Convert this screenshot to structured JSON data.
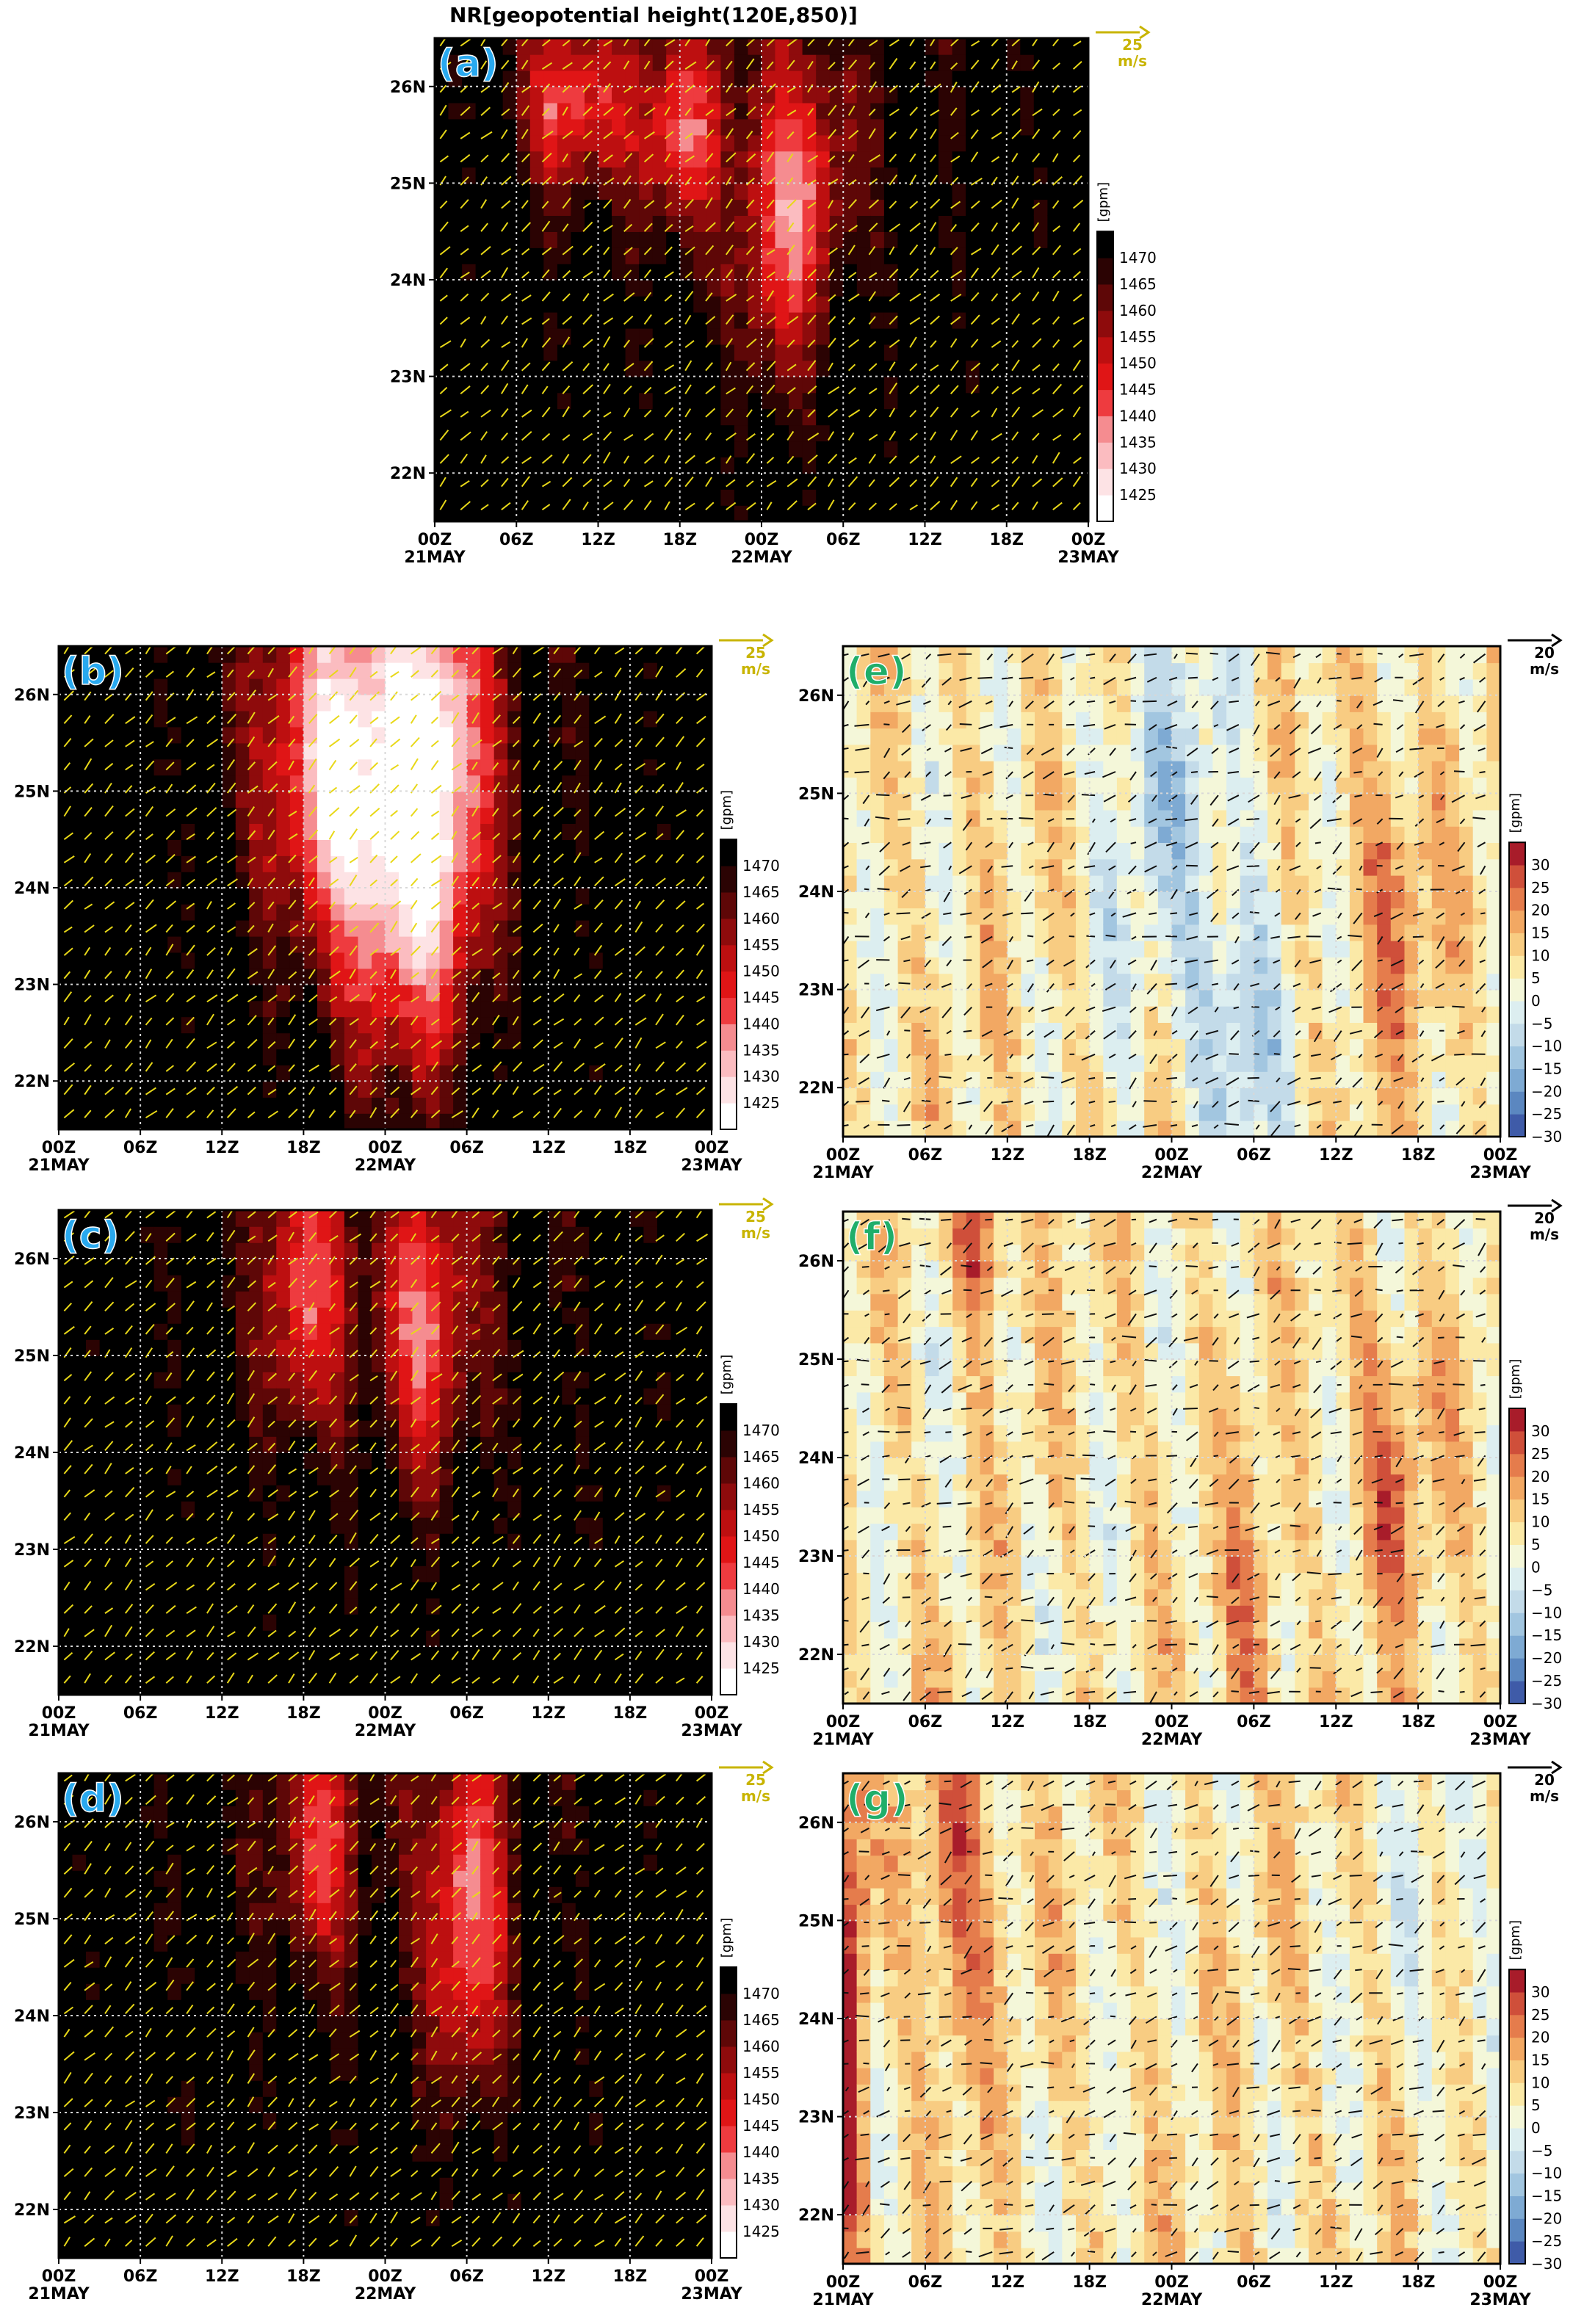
{
  "figure_title": "NR[geopotential height(120E,850)]",
  "chart_data": [
    {
      "id": "a",
      "panel_label": "(a)",
      "type": "heatmap",
      "style": "height",
      "title": "NR[geopotential height(120E,850)]",
      "x_ticks": [
        "00Z",
        "06Z",
        "12Z",
        "18Z",
        "00Z",
        "06Z",
        "12Z",
        "18Z",
        "00Z"
      ],
      "x_ticks_2": [
        "21MAY",
        "",
        "",
        "",
        "22MAY",
        "",
        "",
        "",
        "23MAY"
      ],
      "y_ticks": [
        "22N",
        "23N",
        "24N",
        "25N",
        "26N"
      ],
      "y_values": [
        22,
        23,
        24,
        25,
        26
      ],
      "ylim": [
        21.5,
        26.5
      ],
      "xlim": [
        0,
        48
      ],
      "grid": true,
      "vector_ref": {
        "value": 25,
        "unit": "m/s"
      },
      "colorbar": {
        "unit": "[gpm]",
        "levels": [
          1425,
          1430,
          1435,
          1440,
          1445,
          1450,
          1455,
          1460,
          1465,
          1470
        ],
        "colors": [
          "#ffffff",
          "#fde3e5",
          "#fbbcc0",
          "#f58c90",
          "#ee3b3f",
          "#e01516",
          "#bd0f10",
          "#8e0b0c",
          "#5e0707",
          "#2b0303",
          "#000000"
        ]
      },
      "blobs": [
        [
          10,
          25.8,
          4,
          0.9,
          32
        ],
        [
          18,
          25.5,
          3,
          1.0,
          30
        ],
        [
          25,
          24.3,
          3,
          1.8,
          25
        ],
        [
          28,
          25,
          3,
          1.2,
          20
        ]
      ]
    },
    {
      "id": "b",
      "panel_label": "(b)",
      "type": "heatmap",
      "style": "height",
      "x_ticks": [
        "00Z",
        "06Z",
        "12Z",
        "18Z",
        "00Z",
        "06Z",
        "12Z",
        "18Z",
        "00Z"
      ],
      "x_ticks_2": [
        "21MAY",
        "",
        "",
        "",
        "22MAY",
        "",
        "",
        "",
        "23MAY"
      ],
      "y_ticks": [
        "22N",
        "23N",
        "24N",
        "25N",
        "26N"
      ],
      "y_values": [
        22,
        23,
        24,
        25,
        26
      ],
      "ylim": [
        21.5,
        26.5
      ],
      "xlim": [
        0,
        48
      ],
      "grid": true,
      "vector_ref": {
        "value": 25,
        "unit": "m/s"
      },
      "colorbar": {
        "unit": "[gpm]",
        "levels": [
          1425,
          1430,
          1435,
          1440,
          1445,
          1450,
          1455,
          1460,
          1465,
          1470
        ],
        "colors": [
          "#ffffff",
          "#fde3e5",
          "#fbbcc0",
          "#f58c90",
          "#ee3b3f",
          "#e01516",
          "#bd0f10",
          "#8e0b0c",
          "#5e0707",
          "#2b0303",
          "#000000"
        ]
      },
      "blobs": [
        [
          20,
          25.3,
          5,
          2.0,
          40
        ],
        [
          28,
          25,
          4,
          2.5,
          45
        ],
        [
          24,
          24,
          4,
          2.5,
          22
        ]
      ]
    },
    {
      "id": "c",
      "panel_label": "(c)",
      "type": "heatmap",
      "style": "height",
      "x_ticks": [
        "00Z",
        "06Z",
        "12Z",
        "18Z",
        "00Z",
        "06Z",
        "12Z",
        "18Z",
        "00Z"
      ],
      "x_ticks_2": [
        "21MAY",
        "",
        "",
        "",
        "22MAY",
        "",
        "",
        "",
        "23MAY"
      ],
      "y_ticks": [
        "22N",
        "23N",
        "24N",
        "25N",
        "26N"
      ],
      "y_values": [
        22,
        23,
        24,
        25,
        26
      ],
      "ylim": [
        21.5,
        26.5
      ],
      "xlim": [
        0,
        48
      ],
      "grid": true,
      "vector_ref": {
        "value": 25,
        "unit": "m/s"
      },
      "colorbar": {
        "unit": "[gpm]",
        "levels": [
          1425,
          1430,
          1435,
          1440,
          1445,
          1450,
          1455,
          1460,
          1465,
          1470
        ],
        "colors": [
          "#ffffff",
          "#fde3e5",
          "#fbbcc0",
          "#f58c90",
          "#ee3b3f",
          "#e01516",
          "#bd0f10",
          "#8e0b0c",
          "#5e0707",
          "#2b0303",
          "#000000"
        ]
      },
      "blobs": [
        [
          18,
          25.6,
          3,
          1.4,
          30
        ],
        [
          27,
          25.3,
          3.5,
          1.6,
          30
        ]
      ]
    },
    {
      "id": "d",
      "panel_label": "(d)",
      "type": "heatmap",
      "style": "height",
      "x_ticks": [
        "00Z",
        "06Z",
        "12Z",
        "18Z",
        "00Z",
        "06Z",
        "12Z",
        "18Z",
        "00Z"
      ],
      "x_ticks_2": [
        "21MAY",
        "",
        "",
        "",
        "22MAY",
        "",
        "",
        "",
        "23MAY"
      ],
      "y_ticks": [
        "22N",
        "23N",
        "24N",
        "25N",
        "26N"
      ],
      "y_values": [
        22,
        23,
        24,
        25,
        26
      ],
      "ylim": [
        21.5,
        26.5
      ],
      "xlim": [
        0,
        48
      ],
      "grid": true,
      "vector_ref": {
        "value": 25,
        "unit": "m/s"
      },
      "colorbar": {
        "unit": "[gpm]",
        "levels": [
          1425,
          1430,
          1435,
          1440,
          1445,
          1450,
          1455,
          1460,
          1465,
          1470
        ],
        "colors": [
          "#ffffff",
          "#fde3e5",
          "#fbbcc0",
          "#f58c90",
          "#ee3b3f",
          "#e01516",
          "#bd0f10",
          "#8e0b0c",
          "#5e0707",
          "#2b0303",
          "#000000"
        ]
      },
      "blobs": [
        [
          19,
          25.7,
          3,
          1.2,
          26
        ],
        [
          30,
          25,
          3,
          1.8,
          35
        ]
      ]
    },
    {
      "id": "e",
      "panel_label": "(e)",
      "type": "heatmap",
      "style": "diff",
      "x_ticks": [
        "00Z",
        "06Z",
        "12Z",
        "18Z",
        "00Z",
        "06Z",
        "12Z",
        "18Z",
        "00Z"
      ],
      "x_ticks_2": [
        "21MAY",
        "",
        "",
        "",
        "22MAY",
        "",
        "",
        "",
        "23MAY"
      ],
      "y_ticks": [
        "22N",
        "23N",
        "24N",
        "25N",
        "26N"
      ],
      "y_values": [
        22,
        23,
        24,
        25,
        26
      ],
      "ylim": [
        21.5,
        26.5
      ],
      "xlim": [
        0,
        48
      ],
      "grid": true,
      "vector_ref": {
        "value": 20,
        "unit": "m/s"
      },
      "colorbar": {
        "unit": "[gpm]",
        "levels": [
          -30,
          -25,
          -20,
          -15,
          -10,
          -5,
          0,
          5,
          10,
          15,
          20,
          25,
          30
        ],
        "labels": [
          "30",
          "25",
          "20",
          "15",
          "10",
          "5",
          "0",
          "−5",
          "−10",
          "−15",
          "−20",
          "−25",
          "−30"
        ],
        "colors": [
          "#3f5ba8",
          "#5b87c0",
          "#7eaad3",
          "#a2c6e0",
          "#c3dbe9",
          "#dceef0",
          "#f4f7d9",
          "#fbe9a7",
          "#f8cc82",
          "#f2a863",
          "#e57c4c",
          "#cf4f3a",
          "#a81c2a"
        ]
      },
      "blobs": [
        [
          24,
          24.8,
          5,
          2.5,
          -14
        ],
        [
          29,
          22.5,
          3,
          1.5,
          -18
        ],
        [
          40,
          24,
          3,
          1.6,
          14
        ]
      ]
    },
    {
      "id": "f",
      "panel_label": "(f)",
      "type": "heatmap",
      "style": "diff",
      "x_ticks": [
        "00Z",
        "06Z",
        "12Z",
        "18Z",
        "00Z",
        "06Z",
        "12Z",
        "18Z",
        "00Z"
      ],
      "x_ticks_2": [
        "21MAY",
        "",
        "",
        "",
        "22MAY",
        "",
        "",
        "",
        "23MAY"
      ],
      "y_ticks": [
        "22N",
        "23N",
        "24N",
        "25N",
        "26N"
      ],
      "y_values": [
        22,
        23,
        24,
        25,
        26
      ],
      "ylim": [
        21.5,
        26.5
      ],
      "xlim": [
        0,
        48
      ],
      "grid": true,
      "vector_ref": {
        "value": 20,
        "unit": "m/s"
      },
      "colorbar": {
        "unit": "[gpm]",
        "levels": [
          -30,
          -25,
          -20,
          -15,
          -10,
          -5,
          0,
          5,
          10,
          15,
          20,
          25,
          30
        ],
        "labels": [
          "30",
          "25",
          "20",
          "15",
          "10",
          "5",
          "0",
          "−5",
          "−10",
          "−15",
          "−20",
          "−25",
          "−30"
        ],
        "colors": [
          "#3f5ba8",
          "#5b87c0",
          "#7eaad3",
          "#a2c6e0",
          "#c3dbe9",
          "#dceef0",
          "#f4f7d9",
          "#fbe9a7",
          "#f8cc82",
          "#f2a863",
          "#e57c4c",
          "#cf4f3a",
          "#a81c2a"
        ]
      },
      "blobs": [
        [
          10,
          26.2,
          2,
          0.8,
          20
        ],
        [
          40,
          24,
          3,
          1.5,
          15
        ],
        [
          30,
          22.3,
          2,
          1.5,
          14
        ]
      ]
    },
    {
      "id": "g",
      "panel_label": "(g)",
      "type": "heatmap",
      "style": "diff",
      "x_ticks": [
        "00Z",
        "06Z",
        "12Z",
        "18Z",
        "00Z",
        "06Z",
        "12Z",
        "18Z",
        "00Z"
      ],
      "x_ticks_2": [
        "21MAY",
        "",
        "",
        "",
        "22MAY",
        "",
        "",
        "",
        "23MAY"
      ],
      "y_ticks": [
        "22N",
        "23N",
        "24N",
        "25N",
        "26N"
      ],
      "y_values": [
        22,
        23,
        24,
        25,
        26
      ],
      "ylim": [
        21.5,
        26.5
      ],
      "xlim": [
        0,
        48
      ],
      "grid": true,
      "vector_ref": {
        "value": 20,
        "unit": "m/s"
      },
      "colorbar": {
        "unit": "[gpm]",
        "levels": [
          -30,
          -25,
          -20,
          -15,
          -10,
          -5,
          0,
          5,
          10,
          15,
          20,
          25,
          30
        ],
        "labels": [
          "30",
          "25",
          "20",
          "15",
          "10",
          "5",
          "0",
          "−5",
          "−10",
          "−15",
          "−20",
          "−25",
          "−30"
        ],
        "colors": [
          "#3f5ba8",
          "#5b87c0",
          "#7eaad3",
          "#a2c6e0",
          "#c3dbe9",
          "#dceef0",
          "#f4f7d9",
          "#fbe9a7",
          "#f8cc82",
          "#f2a863",
          "#e57c4c",
          "#cf4f3a",
          "#a81c2a"
        ]
      },
      "blobs": [
        [
          0.5,
          24,
          1.2,
          3,
          28
        ],
        [
          8,
          25.5,
          3,
          2,
          18
        ],
        [
          44,
          24.5,
          4,
          2.5,
          -6
        ]
      ]
    }
  ]
}
